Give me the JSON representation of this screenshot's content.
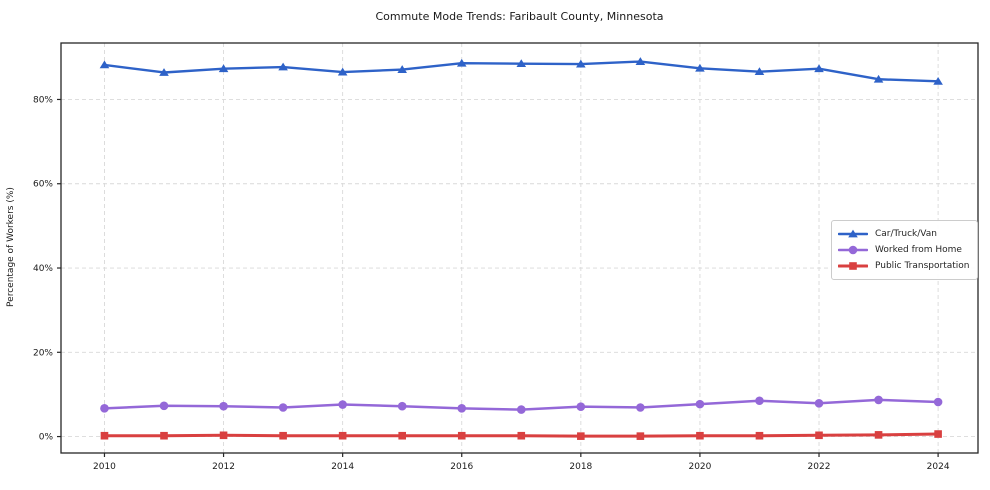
{
  "chart_data": {
    "type": "line",
    "title": "Commute Mode Trends: Faribault County, Minnesota",
    "xlabel": "",
    "ylabel": "Percentage of Workers (%)",
    "x": [
      2010,
      2011,
      2012,
      2013,
      2014,
      2015,
      2016,
      2017,
      2018,
      2019,
      2020,
      2021,
      2022,
      2023,
      2024
    ],
    "series": [
      {
        "name": "Car/Truck/Van",
        "color": "#2e62c8",
        "marker": "triangle",
        "line_width": 2.4,
        "values": [
          88.2,
          86.4,
          87.3,
          87.7,
          86.5,
          87.1,
          88.6,
          88.5,
          88.4,
          89.0,
          87.4,
          86.6,
          87.3,
          84.8,
          84.3
        ]
      },
      {
        "name": "Worked from Home",
        "color": "#9468d8",
        "marker": "circle",
        "line_width": 2.5,
        "values": [
          6.7,
          7.3,
          7.2,
          6.9,
          7.6,
          7.2,
          6.7,
          6.4,
          7.1,
          6.9,
          7.7,
          8.5,
          7.9,
          8.7,
          8.2
        ]
      },
      {
        "name": "Public Transportation",
        "color": "#d94040",
        "marker": "square",
        "line_width": 3,
        "values": [
          0.2,
          0.2,
          0.3,
          0.2,
          0.2,
          0.2,
          0.2,
          0.2,
          0.1,
          0.1,
          0.2,
          0.2,
          0.3,
          0.4,
          0.6
        ]
      }
    ],
    "x_ticks": [
      2010,
      2012,
      2014,
      2016,
      2018,
      2020,
      2022,
      2024
    ],
    "y_ticks": [
      0,
      20,
      40,
      60,
      80
    ],
    "y_tick_suffix": "%",
    "xlim": [
      2009.27,
      2024.67
    ],
    "ylim": [
      -3.9,
      93.4
    ],
    "grid": true,
    "grid_style": "dashed",
    "legend_position": "center right",
    "colors": {
      "grid": "#d9d9d9",
      "spine": "#262626",
      "tick_text": "#1a1a1a",
      "background": "#ffffff"
    }
  }
}
